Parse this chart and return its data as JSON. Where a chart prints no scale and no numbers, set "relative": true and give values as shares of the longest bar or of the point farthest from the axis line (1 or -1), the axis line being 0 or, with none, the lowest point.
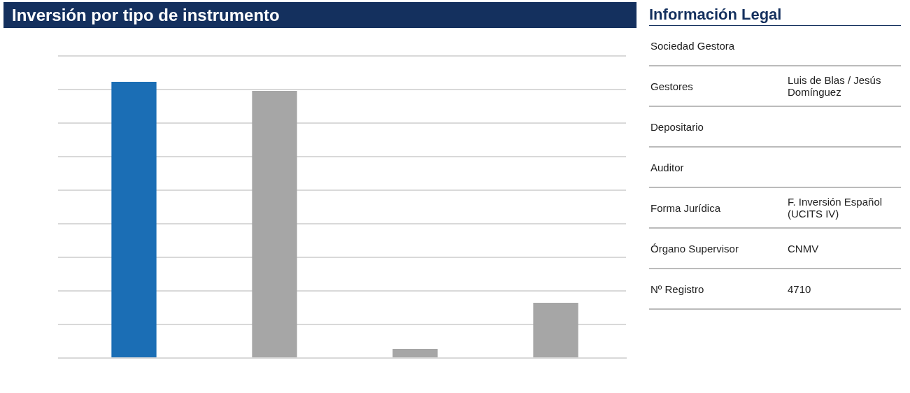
{
  "chart_data": [
    {
      "type": "bar",
      "title": "Inversión por tipo de instrumento",
      "categories": [
        null,
        null,
        null,
        null
      ],
      "values": [
        1,
        0.967,
        0.033,
        0.2
      ],
      "colors": [
        "#1b6eb5",
        "#a6a6a6",
        "#a6a6a6",
        "#a6a6a6"
      ],
      "relative": true,
      "grid": "y",
      "legend": false
    },
    {
      "type": "other",
      "title": "Información Legal",
      "categories": [
        "Sociedad Gestora",
        "Gestores",
        "Depositario",
        "Auditor",
        "Forma Jurídica",
        "Órgano Supervisor",
        "Nº Registro"
      ],
      "value_labels": [
        null,
        "Luis de Blas / Jesús Domínguez",
        null,
        null,
        "F. Inversión Español (UCITS IV)",
        "CNMV",
        "4710"
      ]
    }
  ]
}
